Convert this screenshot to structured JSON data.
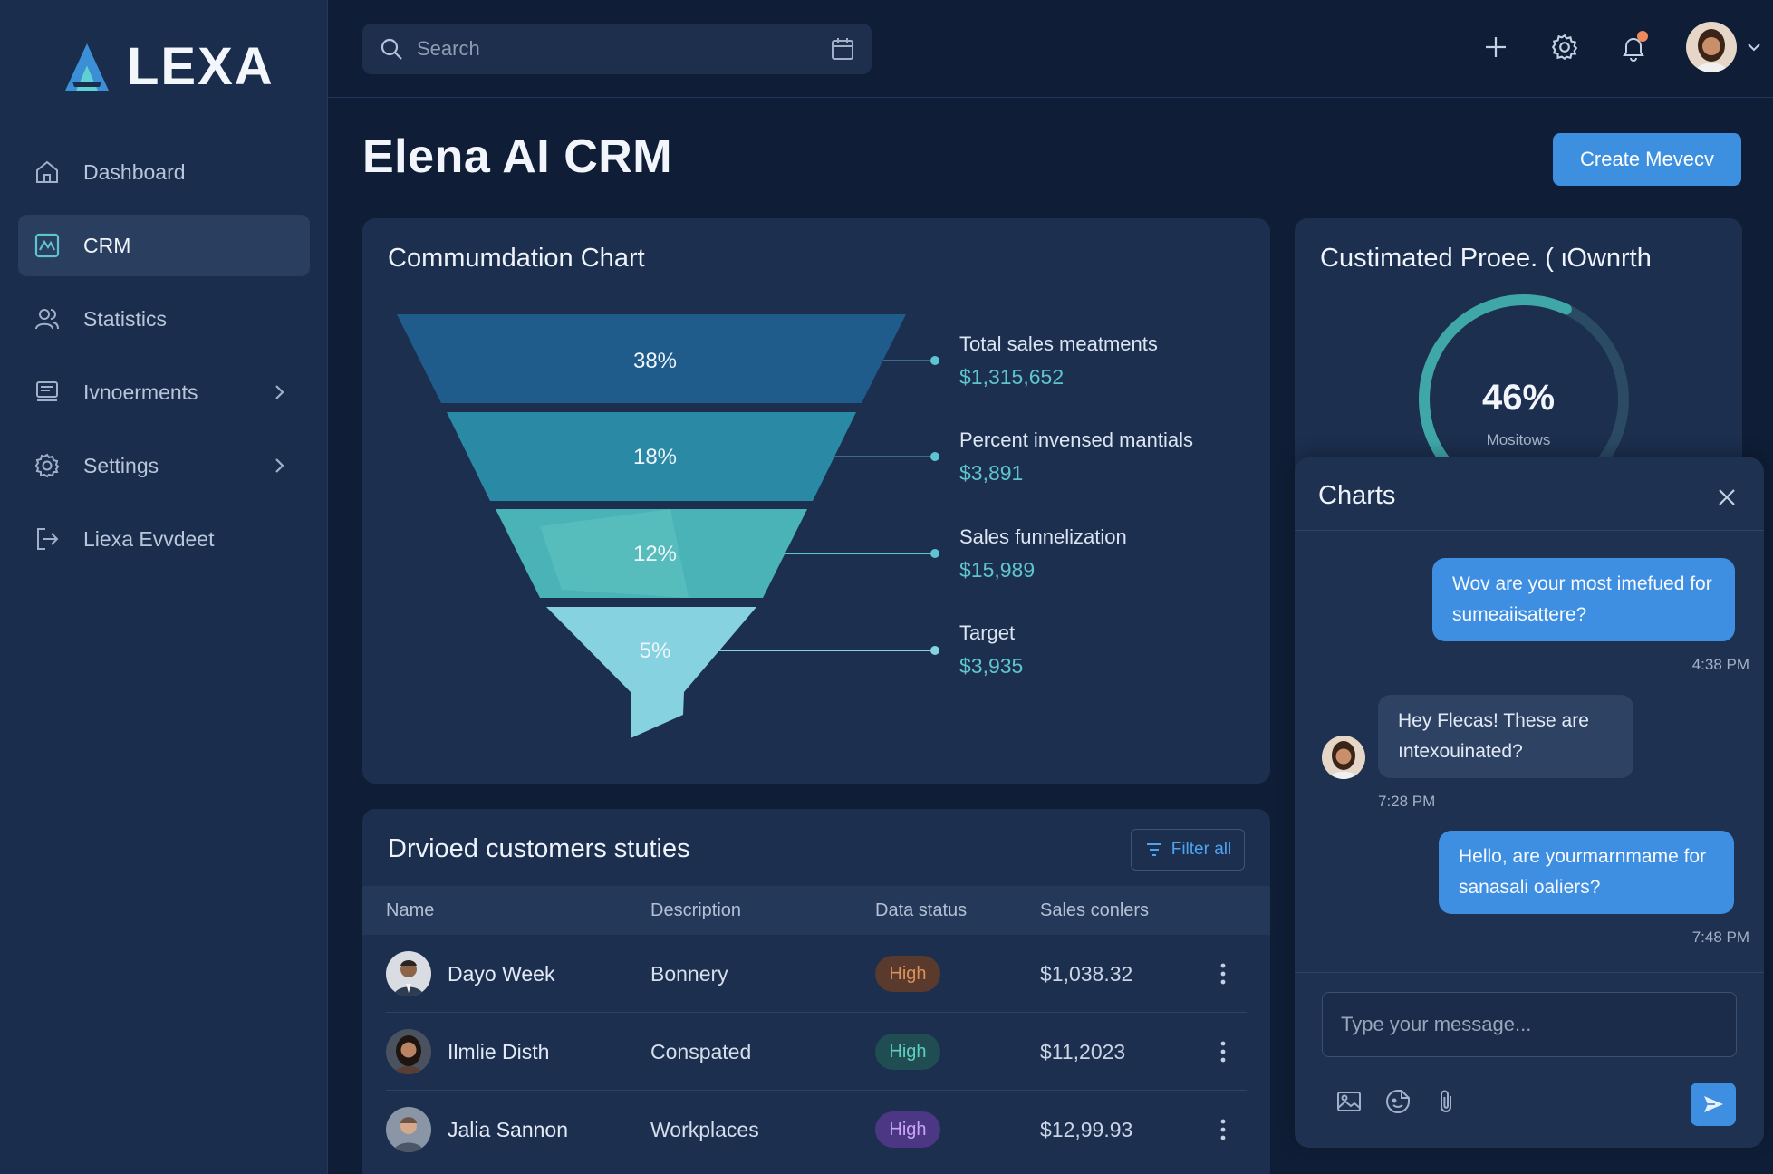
{
  "brand": {
    "name": "LEXA"
  },
  "sidebar": {
    "items": [
      {
        "label": "Dashboard",
        "icon": "home-icon"
      },
      {
        "label": "CRM",
        "icon": "chart-icon",
        "active": true
      },
      {
        "label": "Statistics",
        "icon": "users-icon"
      },
      {
        "label": "Ivnoerments",
        "icon": "monitor-icon",
        "has_submenu": true
      },
      {
        "label": "Settings",
        "icon": "gear-icon",
        "has_submenu": true
      },
      {
        "label": "Liexa Evvdeet",
        "icon": "logout-icon"
      }
    ]
  },
  "topbar": {
    "search_placeholder": "Search",
    "icons": [
      "plus-icon",
      "gear-icon",
      "bell-icon"
    ],
    "has_notification": true
  },
  "page": {
    "title": "Elena AI CRM",
    "create_button": "Create Mevecv"
  },
  "funnel_card": {
    "title": "Commumdation Chart",
    "stages": [
      {
        "percent": "38%",
        "label": "Total sales meatments",
        "value": "$1,315,652"
      },
      {
        "percent": "18%",
        "label": "Percent invensed mantials",
        "value": "$3,891"
      },
      {
        "percent": "12%",
        "label": "Sales funnelization",
        "value": "$15,989"
      },
      {
        "percent": "5%",
        "label": "Target",
        "value": "$3,935"
      }
    ]
  },
  "gauge_card": {
    "title": "Custimated Proee. ( ιOwnrth",
    "value": "46%",
    "fraction": 0.46,
    "caption": "Mositows"
  },
  "table_card": {
    "title": "Drvioed customers stuties",
    "filter_label": "Filter all",
    "columns": [
      "Name",
      "Description",
      "Data status",
      "Sales conlers"
    ],
    "rows": [
      {
        "name": "Dayo Week",
        "description": "Bonnery",
        "status": "High",
        "status_color": "#d9915a",
        "status_bg": "#5a3a2c",
        "sales": "$1,038.32"
      },
      {
        "name": "Ilmlie Disth",
        "description": "Conspated",
        "status": "High",
        "status_color": "#5fcfbf",
        "status_bg": "#1f4d52",
        "sales": "$11,2023"
      },
      {
        "name": "Jalia Sannon",
        "description": "Workplaces",
        "status": "High",
        "status_color": "#c8a6f5",
        "status_bg": "#4b3784",
        "sales": "$12,99.93"
      }
    ]
  },
  "chat": {
    "title": "Charts",
    "messages": [
      {
        "direction": "out",
        "text": "Wov are your most imefued for sumeaiisattere?",
        "time": "4:38 PM"
      },
      {
        "direction": "in",
        "text": "Hey Flecas! These are ıntexouinated?",
        "time": "7:28 PM"
      },
      {
        "direction": "out",
        "text": "Hello, are yourmarnmame for sanasali oaliers?",
        "time": "7:48 PM"
      }
    ],
    "input_placeholder": "Type your message...",
    "tools": [
      "image-icon",
      "sticker-icon",
      "paperclip-icon"
    ]
  },
  "colors": {
    "accent": "#3e8fe2",
    "funnel": [
      "#1f5c8c",
      "#2a8aa6",
      "#49b3b7",
      "#86d2e0"
    ],
    "teal_value": "#5ec4cf"
  }
}
